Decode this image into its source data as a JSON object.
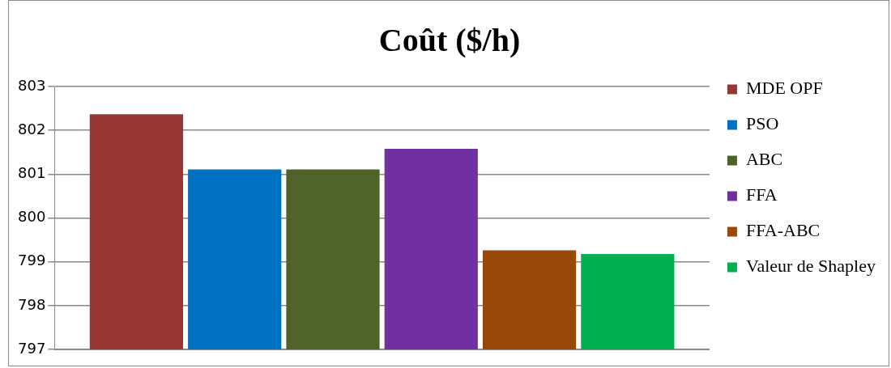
{
  "chart_data": {
    "type": "bar",
    "title": "Coût ($/h)",
    "categories": [
      null
    ],
    "series": [
      {
        "name": "MDE OPF",
        "color": "#953735",
        "values": [
          802.37
        ]
      },
      {
        "name": "PSO",
        "color": "#0070c0",
        "values": [
          801.11
        ]
      },
      {
        "name": "ABC",
        "color": "#4f6228",
        "values": [
          801.11
        ]
      },
      {
        "name": "FFA",
        "color": "#7030a0",
        "values": [
          801.58
        ]
      },
      {
        "name": "FFA-ABC",
        "color": "#984807",
        "values": [
          799.26
        ]
      },
      {
        "name": "Valeur de Shapley",
        "color": "#00b050",
        "values": [
          799.18
        ]
      }
    ],
    "ylim": [
      797,
      803
    ],
    "yticks": [
      797,
      798,
      799,
      800,
      801,
      802,
      803
    ],
    "grid": "y",
    "legend": "right"
  }
}
